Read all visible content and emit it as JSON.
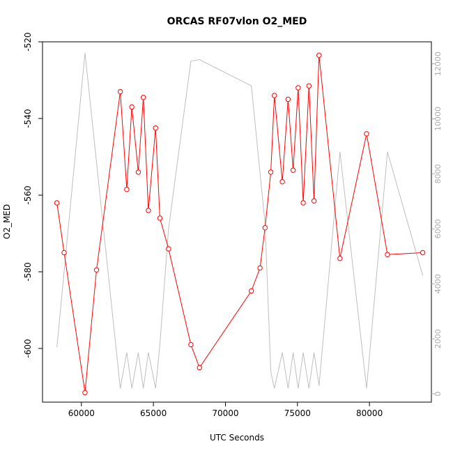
{
  "chart_data": {
    "type": "line",
    "title": "ORCAS RF07vlon O2_MED",
    "xlabel": "UTC Seconds",
    "ylabel": "O2_MED",
    "xlim": [
      57300,
      84300
    ],
    "ylim": [
      -614,
      -520
    ],
    "y2lim": [
      -300,
      12800
    ],
    "x_ticks": [
      60000,
      65000,
      70000,
      75000,
      80000
    ],
    "y_ticks": [
      -600,
      -580,
      -560,
      -540,
      -520
    ],
    "y2_ticks": [
      0,
      2000,
      4000,
      6000,
      8000,
      10000,
      12000
    ],
    "grid": false,
    "colors": {
      "primary": "#ff0000",
      "secondary": "#bebebe"
    },
    "series": [
      {
        "axis": "left",
        "marker": "open-circle",
        "x": [
          58300,
          58800,
          60250,
          61050,
          62700,
          63150,
          63500,
          63950,
          64300,
          64650,
          65150,
          65450,
          66050,
          67600,
          68200,
          71800,
          72400,
          72750,
          73150,
          73400,
          73950,
          74350,
          74700,
          75050,
          75400,
          75800,
          76150,
          76500,
          77950,
          79800,
          81250,
          83700
        ],
        "y": [
          -562,
          -575,
          -611.5,
          -579.5,
          -533,
          -558.5,
          -537,
          -554,
          -534.5,
          -564,
          -542.5,
          -566,
          -574,
          -599,
          -605,
          -585,
          -579,
          -568.5,
          -554,
          -534,
          -556.5,
          -535,
          -553.5,
          -532,
          -562,
          -531.5,
          -561.5,
          -523.5,
          -576.5,
          -544,
          -575.5,
          -575
        ]
      },
      {
        "axis": "right",
        "x": [
          58300,
          60250,
          62700,
          63150,
          63500,
          63950,
          64300,
          64650,
          65150,
          65450,
          66050,
          67600,
          68200,
          71800,
          72750,
          73150,
          73400,
          73950,
          74350,
          74700,
          75050,
          75400,
          75800,
          76150,
          76500,
          77950,
          79800,
          81250,
          83700
        ],
        "y": [
          1700,
          12400,
          200,
          1500,
          200,
          1500,
          200,
          1500,
          200,
          1800,
          6000,
          12100,
          12150,
          11200,
          6200,
          800,
          200,
          1500,
          200,
          1500,
          200,
          1500,
          200,
          1500,
          300,
          8800,
          200,
          8800,
          4300
        ]
      }
    ]
  }
}
